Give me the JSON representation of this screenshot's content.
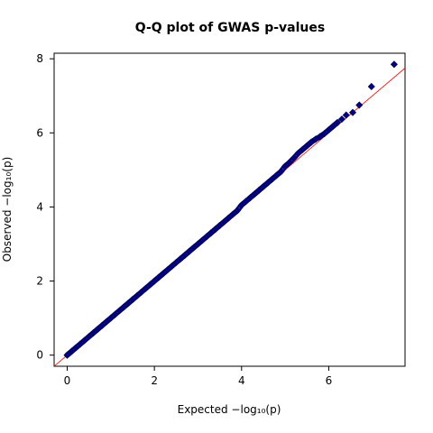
{
  "chart_data": {
    "type": "scatter",
    "title": "Q-Q plot of GWAS p-values",
    "xlabel": "Expected  −log₁₀(p)",
    "ylabel": "Observed  −log₁₀(p)",
    "xlim": [
      -0.3,
      7.75
    ],
    "ylim": [
      -0.3,
      8.15
    ],
    "xticks": [
      "0",
      "2",
      "4",
      "6"
    ],
    "yticks": [
      "0",
      "2",
      "4",
      "6",
      "8"
    ],
    "grid": false,
    "legend": "none",
    "reference_line": {
      "from": [
        -0.3,
        -0.3
      ],
      "to": [
        7.75,
        7.75
      ]
    },
    "series": [
      {
        "marker": "diamond",
        "color": "#00008b",
        "edge_color": "#000033",
        "x": [
          0.0,
          0.1,
          0.2,
          0.3,
          0.4,
          0.5,
          0.6,
          0.7,
          0.8,
          0.9,
          1.0,
          1.1,
          1.2,
          1.3,
          1.4,
          1.5,
          1.6,
          1.7,
          1.8,
          1.9,
          2.0,
          2.1,
          2.2,
          2.3,
          2.4,
          2.5,
          2.6,
          2.7,
          2.8,
          2.9,
          3.0,
          3.1,
          3.2,
          3.3,
          3.4,
          3.5,
          3.6,
          3.7,
          3.8,
          3.9,
          4.0,
          4.1,
          4.2,
          4.3,
          4.4,
          4.5,
          4.6,
          4.7,
          4.8,
          4.9,
          5.0,
          5.1,
          5.2,
          5.3,
          5.4,
          5.5,
          5.6,
          5.7,
          5.8,
          5.9,
          6.0,
          6.1,
          6.2,
          6.3,
          6.4,
          6.55,
          6.7,
          6.98,
          7.5
        ],
        "y": [
          0.0,
          0.1,
          0.2,
          0.3,
          0.4,
          0.5,
          0.6,
          0.7,
          0.8,
          0.9,
          1.0,
          1.1,
          1.2,
          1.3,
          1.4,
          1.5,
          1.6,
          1.7,
          1.8,
          1.9,
          2.0,
          2.1,
          2.2,
          2.3,
          2.4,
          2.5,
          2.6,
          2.7,
          2.8,
          2.9,
          3.0,
          3.1,
          3.2,
          3.3,
          3.4,
          3.5,
          3.6,
          3.7,
          3.8,
          3.9,
          4.05,
          4.15,
          4.25,
          4.35,
          4.45,
          4.55,
          4.65,
          4.75,
          4.85,
          4.95,
          5.1,
          5.2,
          5.32,
          5.45,
          5.55,
          5.65,
          5.75,
          5.83,
          5.9,
          5.98,
          6.08,
          6.18,
          6.28,
          6.37,
          6.48,
          6.55,
          6.75,
          7.25,
          7.85
        ]
      }
    ]
  }
}
